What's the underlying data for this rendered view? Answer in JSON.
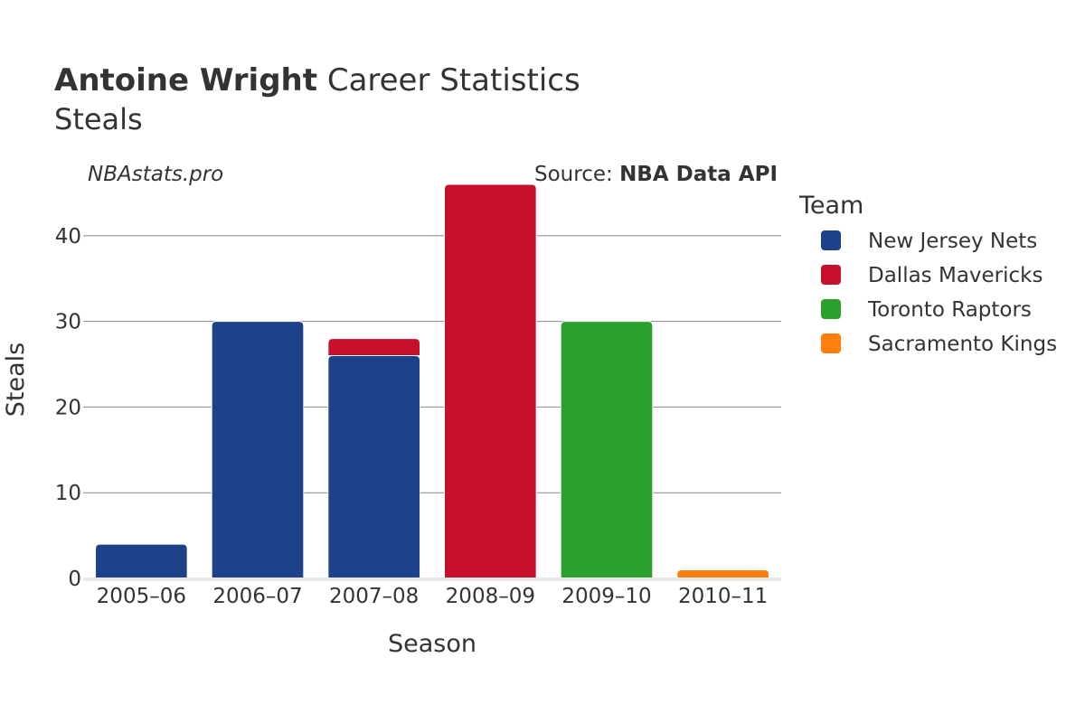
{
  "title": {
    "bold": "Antoine Wright",
    "rest": " Career Statistics",
    "subtitle": "Steals"
  },
  "credit": "NBAstats.pro",
  "source": {
    "prefix": "Source: ",
    "name": "NBA Data API"
  },
  "chart_data": {
    "type": "bar",
    "stacked": true,
    "title": "Antoine Wright Career Statistics",
    "subtitle": "Steals",
    "xlabel": "Season",
    "ylabel": "Steals",
    "categories": [
      "2005–06",
      "2006–07",
      "2007–08",
      "2008–09",
      "2009–10",
      "2010–11"
    ],
    "ylim": [
      0,
      48
    ],
    "yticks": [
      0,
      10,
      20,
      30,
      40
    ],
    "grid": true,
    "legend_title": "Team",
    "legend_position": "right",
    "series": [
      {
        "name": "New Jersey Nets",
        "color": "#1d428a",
        "values": [
          4,
          30,
          26,
          0,
          0,
          0
        ]
      },
      {
        "name": "Dallas Mavericks",
        "color": "#c8102e",
        "values": [
          0,
          0,
          2,
          46,
          0,
          0
        ]
      },
      {
        "name": "Toronto Raptors",
        "color": "#2ca02c",
        "values": [
          0,
          0,
          0,
          0,
          30,
          0
        ]
      },
      {
        "name": "Sacramento Kings",
        "color": "#ff7f0e",
        "values": [
          0,
          0,
          0,
          0,
          0,
          1
        ]
      }
    ]
  }
}
